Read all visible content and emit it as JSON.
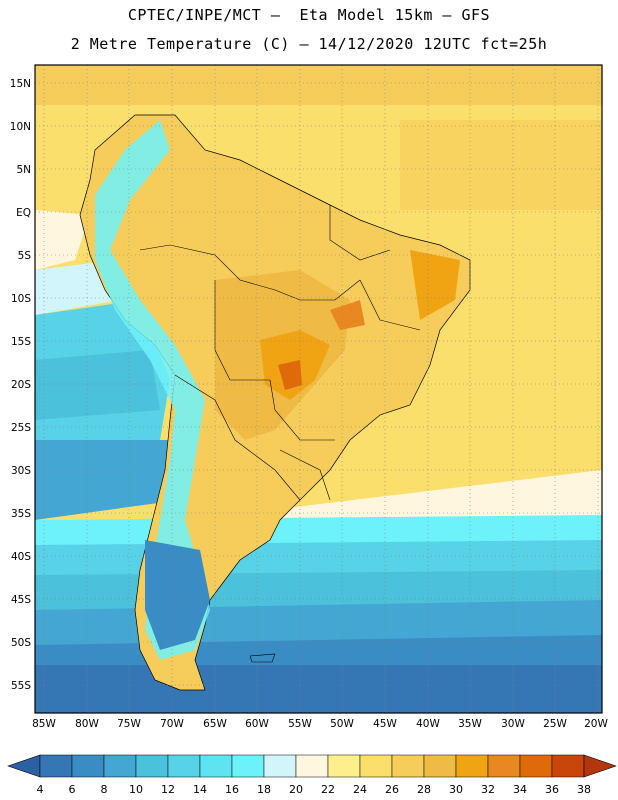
{
  "header": {
    "line1": "CPTEC/INPE/MCT –  Eta Model 15km – GFS",
    "line2": "2 Metre Temperature (C) – 14/12/2020 12UTC fct=25h"
  },
  "map": {
    "lat_labels": [
      "15N",
      "10N",
      "5N",
      "EQ",
      "5S",
      "10S",
      "15S",
      "20S",
      "25S",
      "30S",
      "35S",
      "40S",
      "45S",
      "50S",
      "55S"
    ],
    "lon_labels": [
      "85W",
      "80W",
      "75W",
      "70W",
      "65W",
      "60W",
      "55W",
      "50W",
      "45W",
      "40W",
      "35W",
      "30W",
      "25W",
      "20W"
    ]
  },
  "colorbar": {
    "labels": [
      "4",
      "6",
      "8",
      "10",
      "12",
      "14",
      "16",
      "18",
      "20",
      "22",
      "24",
      "26",
      "28",
      "30",
      "32",
      "34",
      "36",
      "38"
    ],
    "colors": [
      "#2d5fa3",
      "#3576b5",
      "#3a8cc4",
      "#44a7d3",
      "#4cc1dc",
      "#57d2e6",
      "#5fe3f1",
      "#6df2fb",
      "#d2f4fb",
      "#fff6df",
      "#fdf08c",
      "#fbdf6c",
      "#f6cd5b",
      "#f0bb45",
      "#f0a414",
      "#e98820",
      "#df6a09",
      "#c9460a",
      "#b4360e"
    ]
  }
}
